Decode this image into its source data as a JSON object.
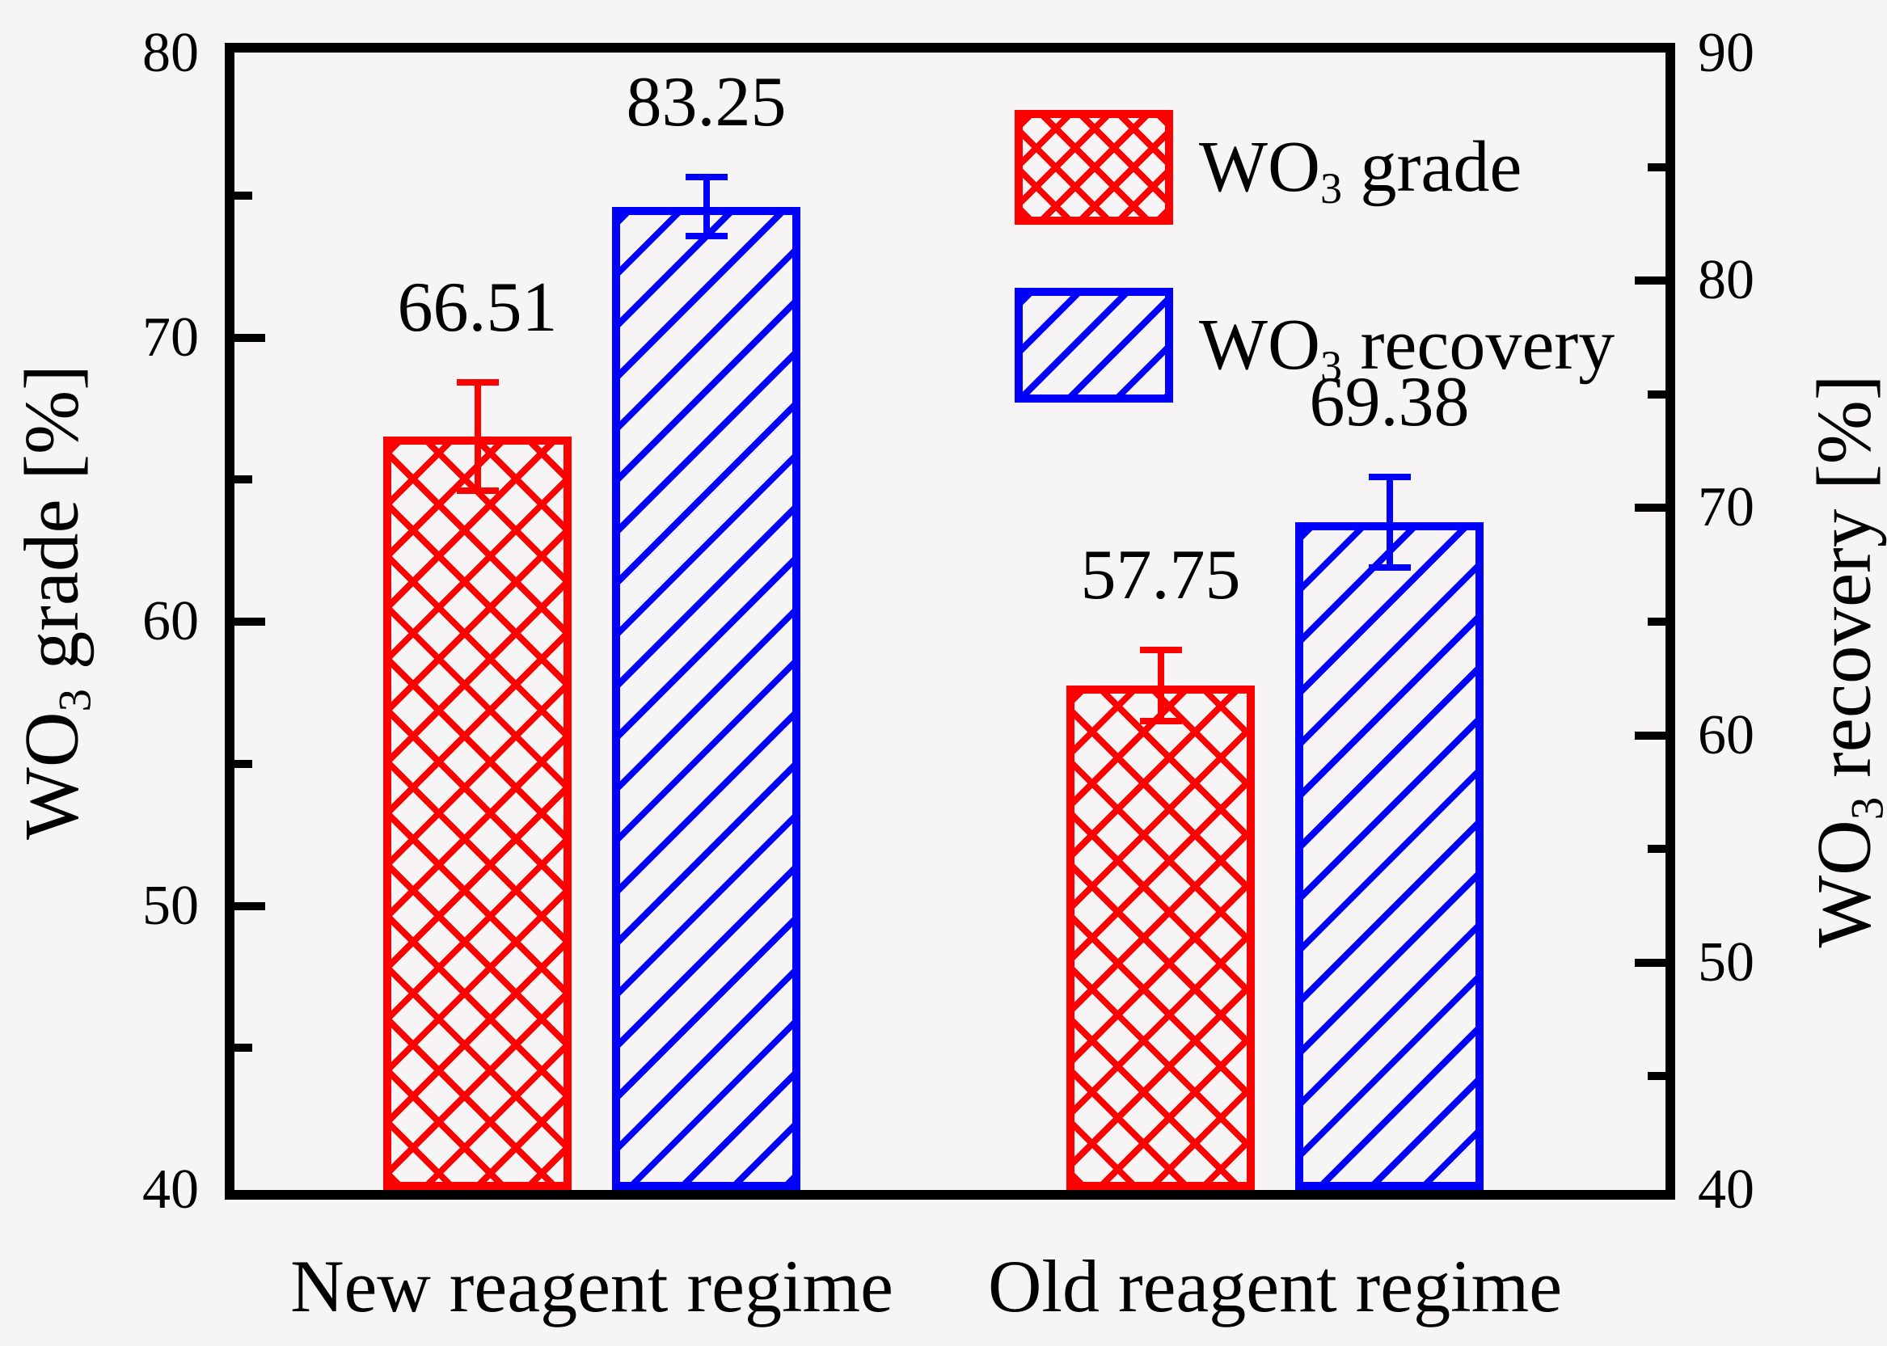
{
  "figure": {
    "background_color": "#f6f4f5",
    "frame_color": "#000000"
  },
  "chart_data": {
    "type": "bar",
    "title": "",
    "categories": [
      "New reagent regime",
      "Old reagent regime"
    ],
    "series": [
      {
        "name": "WO3 grade",
        "axis": "left",
        "color": "#fe0000",
        "hatch": "crosshatch",
        "values": [
          66.51,
          57.75
        ],
        "errors": [
          1.9,
          1.25
        ],
        "value_labels": [
          "66.51",
          "57.75"
        ]
      },
      {
        "name": "WO3 recovery",
        "axis": "right",
        "color": "#0100fe",
        "hatch": "diagonal",
        "values": [
          83.25,
          69.38
        ],
        "errors": [
          1.3,
          2.0
        ],
        "value_labels": [
          "83.25",
          "69.38"
        ]
      }
    ],
    "left_axis": {
      "label_main": "WO",
      "label_sub": "3",
      "label_rest": " grade [%]",
      "min": 40,
      "max": 80,
      "major_ticks": [
        40,
        50,
        60,
        70,
        80
      ],
      "minor_ticks": [
        45,
        55,
        65,
        75
      ]
    },
    "right_axis": {
      "label_main": "WO",
      "label_sub": "3",
      "label_rest": " recovery [%]",
      "min": 40,
      "max": 90,
      "major_ticks": [
        40,
        50,
        60,
        70,
        80,
        90
      ],
      "minor_ticks": [
        45,
        55,
        65,
        75,
        85
      ]
    },
    "legend": {
      "position": "top-right-inside",
      "entries": [
        {
          "label_main": "WO",
          "label_sub": "3",
          "label_rest": " grade",
          "series_index": 0
        },
        {
          "label_main": "WO",
          "label_sub": "3",
          "label_rest": " recovery",
          "series_index": 1
        }
      ]
    },
    "grid": false
  }
}
